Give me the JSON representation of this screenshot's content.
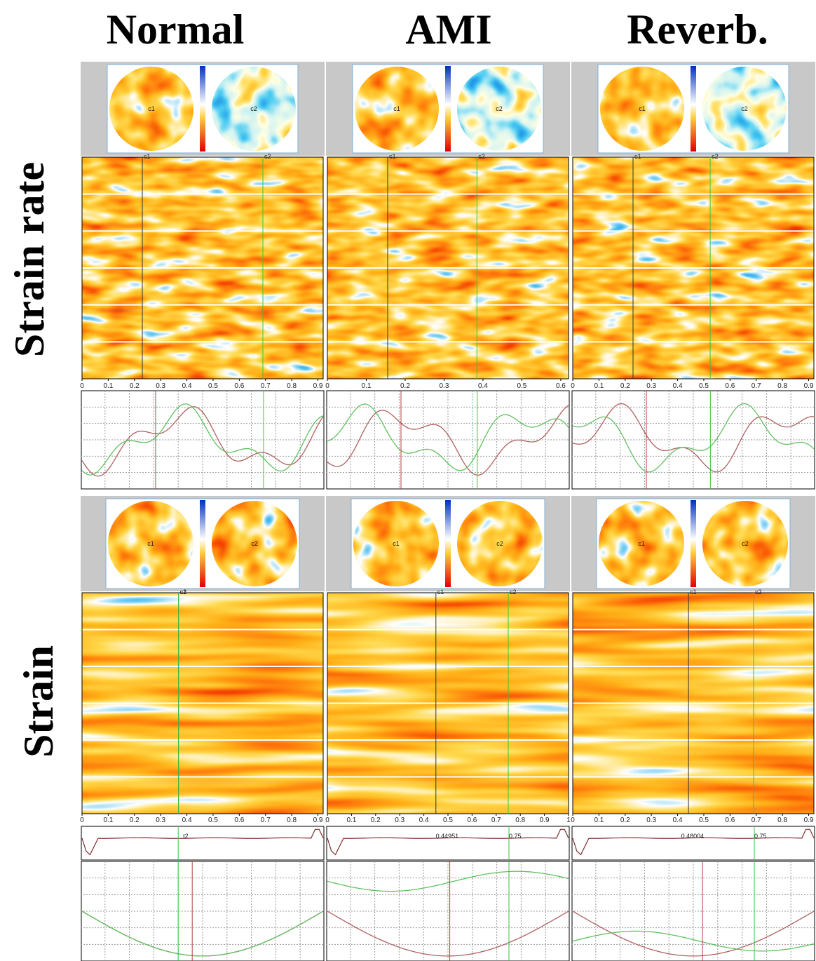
{
  "columns": [
    "Normal",
    "AMI",
    "Reverb."
  ],
  "rows": [
    {
      "label": "Strain rate",
      "panels": [
        {
          "polar_labels": [
            "c1",
            "c2"
          ],
          "heatmap_labels": [
            "c1",
            "c2"
          ],
          "xticks": [
            0,
            0.1,
            0.2,
            0.3,
            0.4,
            0.5,
            0.6,
            0.7,
            0.8,
            0.9
          ]
        },
        {
          "polar_labels": [
            "c1",
            "c2"
          ],
          "heatmap_labels": [
            "c1",
            "c2"
          ],
          "xticks": [
            0,
            0.1,
            0.2,
            0.3,
            0.4,
            0.5,
            0.6
          ]
        },
        {
          "polar_labels": [
            "c1",
            "c2"
          ],
          "heatmap_labels": [
            "c1",
            "c2"
          ],
          "xticks": [
            0,
            0.1,
            0.2,
            0.3,
            0.4,
            0.5,
            0.6,
            0.7,
            0.8,
            0.9
          ]
        }
      ]
    },
    {
      "label": "Strain",
      "panels": [
        {
          "polar_labels": [
            "c1",
            "c2"
          ],
          "heatmap_labels": [
            "c1",
            "c2"
          ],
          "xticks": [
            0,
            0.1,
            0.2,
            0.3,
            0.4,
            0.5,
            0.6,
            0.7,
            0.8,
            0.9
          ],
          "trace_labels": [
            "t2"
          ]
        },
        {
          "polar_labels": [
            "c1",
            "c2"
          ],
          "heatmap_labels": [
            "c1",
            "c2"
          ],
          "xticks": [
            0,
            0.1,
            0.2,
            0.3,
            0.4,
            0.5,
            0.6,
            0.7,
            0.8,
            0.9,
            1
          ],
          "trace_labels": [
            "0.44951",
            "0.75"
          ]
        },
        {
          "polar_labels": [
            "c1",
            "c2"
          ],
          "heatmap_labels": [
            "c1",
            "c2"
          ],
          "xticks": [
            0,
            0.1,
            0.2,
            0.3,
            0.4,
            0.5,
            0.6,
            0.7,
            0.8,
            0.9
          ],
          "trace_labels": [
            "0.48004",
            "0.75"
          ]
        }
      ]
    }
  ]
}
